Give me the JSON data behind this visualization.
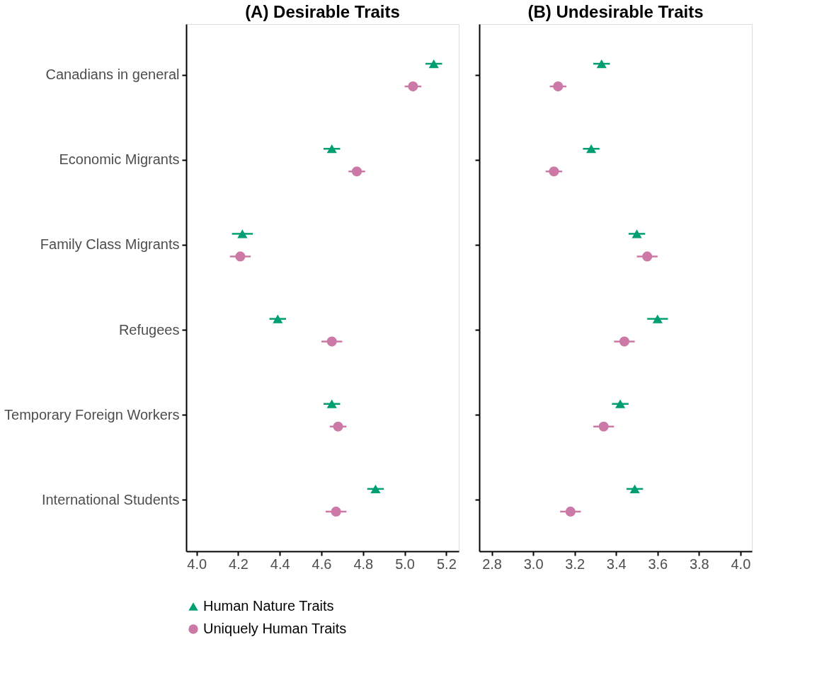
{
  "chart_data": [
    {
      "type": "scatter",
      "title": "(A) Desirable Traits",
      "categories": [
        "Canadians in general",
        "Economic Migrants",
        "Family Class Migrants",
        "Refugees",
        "Temporary Foreign Workers",
        "International Students"
      ],
      "series": [
        {
          "name": "Human Nature Traits",
          "color": "#009e73",
          "marker": "triangle",
          "values": [
            5.14,
            4.65,
            4.22,
            4.39,
            4.65,
            4.86
          ],
          "errors": [
            0.04,
            0.04,
            0.05,
            0.04,
            0.04,
            0.04
          ]
        },
        {
          "name": "Uniquely Human Traits",
          "color": "#cc79a7",
          "marker": "circle",
          "values": [
            5.04,
            4.77,
            4.21,
            4.65,
            4.68,
            4.67
          ],
          "errors": [
            0.04,
            0.04,
            0.05,
            0.05,
            0.04,
            0.05
          ]
        }
      ],
      "xlim": [
        3.95,
        5.26
      ],
      "xticks": [
        {
          "value": 4,
          "label": "4.0"
        },
        4.2,
        4.4,
        4.6,
        4.8,
        {
          "value": 5,
          "label": "5.0"
        },
        5.2
      ],
      "grid": false,
      "legend": "bottom",
      "orientation": "horizontal"
    },
    {
      "type": "scatter",
      "title": "(B) Undesirable Traits",
      "categories": [
        null,
        null,
        null,
        null,
        null,
        null
      ],
      "series": [
        {
          "name": "Human Nature Traits",
          "color": "#009e73",
          "marker": "triangle",
          "values": [
            3.33,
            3.28,
            3.5,
            3.6,
            3.42,
            3.49
          ],
          "errors": [
            0.04,
            0.04,
            0.04,
            0.05,
            0.04,
            0.04
          ]
        },
        {
          "name": "Uniquely Human Traits",
          "color": "#cc79a7",
          "marker": "circle",
          "values": [
            3.12,
            3.1,
            3.55,
            3.44,
            3.34,
            3.18
          ],
          "errors": [
            0.04,
            0.04,
            0.05,
            0.05,
            0.05,
            0.05
          ]
        }
      ],
      "xlim": [
        2.74,
        4.055
      ],
      "xticks": [
        2.8,
        {
          "value": 3,
          "label": "3.0"
        },
        3.2,
        3.4,
        3.6,
        3.8,
        {
          "value": 4,
          "label": "4.0"
        }
      ],
      "grid": false,
      "tick_labels": "x",
      "orientation": "horizontal"
    }
  ]
}
